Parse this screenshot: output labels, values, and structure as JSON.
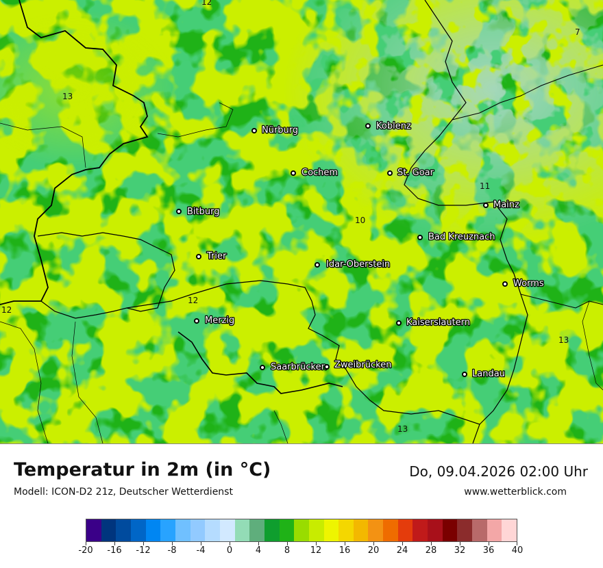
{
  "footer": {
    "title": "Temperatur in 2m (in °C)",
    "model": "Modell: ICON-D2 21z, Deutscher Wetterdienst",
    "datetime": "Do, 09.04.2026 02:00 Uhr",
    "website": "www.wetterblick.com"
  },
  "colors": {
    "base_green": "#1fb217",
    "light_green": "#99dc00",
    "lime": "#c8ec00",
    "dark_green": "#0f9e2e",
    "teal_green": "#5fae7c",
    "pale_teal": "#93dcb6",
    "border": "#000000"
  },
  "legend": {
    "min": -20,
    "max": 40,
    "step": 2,
    "tick_labels": [
      "-20",
      "-16",
      "-12",
      "-8",
      "-4",
      "0",
      "4",
      "8",
      "12",
      "16",
      "20",
      "24",
      "28",
      "32",
      "36",
      "40"
    ],
    "colors": [
      "#3a0088",
      "#00357e",
      "#004b9e",
      "#0066c7",
      "#0086f2",
      "#28a3ff",
      "#70c0ff",
      "#92caff",
      "#b5dcff",
      "#d2e9ff",
      "#93dcb6",
      "#5fae7c",
      "#0f9e2e",
      "#1fb217",
      "#99dc00",
      "#c8ec00",
      "#eef500",
      "#f4d700",
      "#f3b800",
      "#f39213",
      "#ef6c00",
      "#e43c0c",
      "#c01a1a",
      "#a8101a",
      "#7a0000",
      "#8b2c2c",
      "#b86a6a",
      "#f3a7a7",
      "#ffd6d6"
    ]
  },
  "cities": [
    {
      "name": "Nürburg"
    },
    {
      "name": "Koblenz"
    },
    {
      "name": "Cochem"
    },
    {
      "name": "St. Goar"
    },
    {
      "name": "Mainz"
    },
    {
      "name": "Bitburg"
    },
    {
      "name": "Bad Kreuznach"
    },
    {
      "name": "Trier"
    },
    {
      "name": "Idar-Oberstein"
    },
    {
      "name": "Worms"
    },
    {
      "name": "Merzig"
    },
    {
      "name": "Kaiserslautern"
    },
    {
      "name": "Saarbrücken"
    },
    {
      "name": "Zweibrücken"
    },
    {
      "name": "Landau"
    }
  ],
  "isotherm_labels": [
    "12",
    "13",
    "7",
    "11",
    "10",
    "12",
    "12",
    "13",
    "13"
  ]
}
